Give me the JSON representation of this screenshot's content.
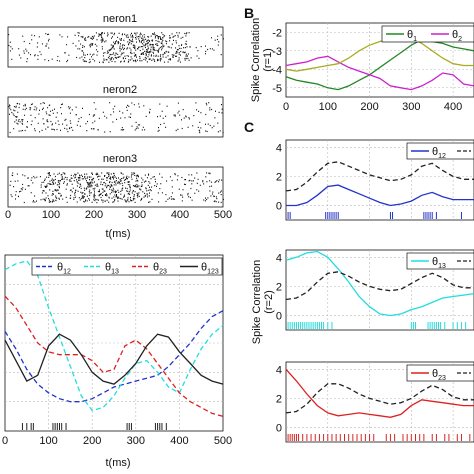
{
  "panel_letters": {
    "b": "B",
    "c": "C"
  },
  "ylabel_b": "Spike Correlation",
  "ylabel_b_sub": "(r=1)",
  "ylabel_c": "Spike Correlation",
  "ylabel_c_sub": "(r=2)",
  "colors": {
    "dot": "#111111",
    "grid": "#b9b9b9",
    "blue": "#2233cc",
    "cyan": "#22dddd",
    "red": "#dd2222",
    "black": "#222222",
    "green": "#228822",
    "magenta": "#cc22cc",
    "olive": "#aaaa22"
  },
  "chart_data": [
    {
      "id": "raster",
      "type": "scatter",
      "title": "",
      "xlabel": "t(ms)",
      "xlim": [
        0,
        500
      ],
      "x_ticks": [
        "0",
        "100",
        "200",
        "300",
        "400",
        "500"
      ],
      "rows": [
        {
          "label": "neron1",
          "density_peak_ms": 300,
          "description_rate": "high in 200-400"
        },
        {
          "label": "neron2",
          "density_peak_ms": 100,
          "description_rate": "higher in 0-150"
        },
        {
          "label": "neron3",
          "density_peak_ms": 200,
          "description_rate": "high in 100-300"
        }
      ]
    },
    {
      "id": "A",
      "type": "line",
      "xlabel": "t(ms)",
      "xlim": [
        0,
        500
      ],
      "ylim": [
        0,
        6
      ],
      "x_ticks": [
        "0",
        "100",
        "200",
        "300",
        "400",
        "500"
      ],
      "legend": [
        "θ12",
        "θ13",
        "θ23",
        "θ123"
      ],
      "x": [
        0,
        25,
        50,
        75,
        100,
        125,
        150,
        175,
        200,
        225,
        250,
        275,
        300,
        325,
        350,
        375,
        400,
        425,
        450,
        475,
        500
      ],
      "series": [
        {
          "name": "θ12",
          "color": "blue",
          "dash": true,
          "values": [
            3.4,
            2.8,
            2.1,
            1.6,
            1.3,
            1.1,
            1.0,
            1.0,
            1.1,
            1.3,
            1.5,
            1.6,
            1.7,
            1.8,
            1.9,
            2.2,
            2.6,
            3.0,
            3.5,
            3.9,
            4.1
          ]
        },
        {
          "name": "θ13",
          "color": "cyan",
          "dash": true,
          "values": [
            5.5,
            5.7,
            5.8,
            5.3,
            4.2,
            3.2,
            2.2,
            1.2,
            0.7,
            0.8,
            1.2,
            1.8,
            2.3,
            2.4,
            2.0,
            1.5,
            1.3,
            2.1,
            2.8,
            3.3,
            3.6
          ]
        },
        {
          "name": "θ23",
          "color": "red",
          "dash": true,
          "values": [
            4.6,
            4.2,
            3.6,
            3.0,
            2.7,
            2.6,
            2.6,
            2.6,
            2.4,
            2.0,
            2.1,
            2.9,
            3.1,
            2.8,
            2.3,
            1.8,
            1.3,
            1.0,
            0.8,
            0.6,
            0.5
          ]
        },
        {
          "name": "θ123",
          "color": "black",
          "dash": false,
          "values": [
            3.1,
            2.4,
            1.7,
            1.9,
            2.9,
            3.3,
            3.1,
            2.6,
            2.0,
            1.7,
            1.6,
            1.9,
            2.3,
            2.9,
            3.3,
            3.2,
            2.7,
            2.3,
            1.9,
            1.7,
            1.6
          ]
        }
      ],
      "spike_events_ms": [
        40,
        50,
        60,
        65,
        110,
        115,
        120,
        125,
        130,
        140,
        280,
        285,
        290,
        345,
        350,
        355,
        360,
        370
      ]
    },
    {
      "id": "B",
      "type": "line",
      "xlim": [
        0,
        450
      ],
      "ylim": [
        -5.5,
        -1.5
      ],
      "x_ticks": [
        "0",
        "100",
        "200",
        "300",
        "400"
      ],
      "y_ticks": [
        "-2",
        "-3",
        "-4",
        "-5"
      ],
      "y_tick_values": [
        -2,
        -3,
        -4,
        -5
      ],
      "legend": [
        "θ1",
        "θ2"
      ],
      "x": [
        0,
        25,
        50,
        75,
        100,
        125,
        150,
        175,
        200,
        225,
        250,
        275,
        300,
        325,
        350,
        375,
        400,
        425,
        450
      ],
      "series": [
        {
          "name": "θ1",
          "color": "green",
          "values": [
            -4.4,
            -4.6,
            -4.7,
            -4.8,
            -5.0,
            -5.1,
            -4.9,
            -4.6,
            -4.3,
            -3.9,
            -3.5,
            -3.1,
            -2.7,
            -2.4,
            -2.5,
            -2.6,
            -2.8,
            -2.9,
            -3.0
          ]
        },
        {
          "name": "θ2",
          "color": "magenta",
          "values": [
            -3.8,
            -3.7,
            -3.6,
            -3.4,
            -3.3,
            -3.6,
            -3.9,
            -4.1,
            -4.3,
            -4.5,
            -4.9,
            -5.0,
            -5.1,
            -4.9,
            -4.6,
            -4.2,
            -4.3,
            -4.8,
            -4.9
          ]
        },
        {
          "name": "",
          "color": "olive",
          "values": [
            -4.0,
            -4.1,
            -4.0,
            -3.9,
            -3.8,
            -3.7,
            -3.4,
            -3.0,
            -2.7,
            -2.5,
            -2.3,
            -2.2,
            -2.3,
            -2.6,
            -3.0,
            -3.4,
            -3.7,
            -3.8,
            -3.8
          ]
        }
      ]
    },
    {
      "id": "C1",
      "type": "line",
      "xlim": [
        0,
        450
      ],
      "ylim": [
        -1,
        4.5
      ],
      "y_ticks": [
        "4",
        "2",
        "0"
      ],
      "y_tick_values": [
        4,
        2,
        0
      ],
      "legend": [
        "θ12"
      ],
      "x": [
        0,
        25,
        50,
        75,
        100,
        125,
        150,
        175,
        200,
        225,
        250,
        275,
        300,
        325,
        350,
        375,
        400,
        425,
        450
      ],
      "series": [
        {
          "name": "θ12",
          "color": "blue",
          "dash": false,
          "values": [
            0.0,
            0.0,
            0.2,
            0.7,
            1.3,
            1.4,
            1.1,
            0.8,
            0.5,
            0.2,
            0.0,
            0.1,
            0.3,
            0.7,
            0.9,
            0.6,
            0.4,
            0.4,
            0.4
          ]
        },
        {
          "name": "",
          "color": "black",
          "dash": true,
          "values": [
            1.0,
            1.1,
            1.6,
            2.3,
            2.9,
            3.0,
            2.7,
            2.4,
            2.1,
            1.9,
            1.7,
            1.8,
            2.1,
            2.7,
            2.9,
            2.4,
            2.0,
            1.8,
            1.8
          ]
        }
      ],
      "spike_events_ms": [
        5,
        10,
        95,
        100,
        105,
        110,
        115,
        120,
        125,
        250,
        255,
        330,
        335,
        340,
        345,
        350,
        360,
        420
      ]
    },
    {
      "id": "C2",
      "type": "line",
      "xlim": [
        0,
        450
      ],
      "ylim": [
        -1,
        4.5
      ],
      "y_ticks": [
        "4",
        "2",
        "0"
      ],
      "y_tick_values": [
        4,
        2,
        0
      ],
      "legend": [
        "θ13"
      ],
      "x": [
        0,
        25,
        50,
        75,
        100,
        125,
        150,
        175,
        200,
        225,
        250,
        275,
        300,
        325,
        350,
        375,
        400,
        425,
        450
      ],
      "series": [
        {
          "name": "θ13",
          "color": "cyan",
          "dash": false,
          "values": [
            3.8,
            4.0,
            4.3,
            4.4,
            4.0,
            3.2,
            2.3,
            1.3,
            0.6,
            0.1,
            0.0,
            0.1,
            0.4,
            0.6,
            0.9,
            1.2,
            1.3,
            1.4,
            1.5
          ]
        },
        {
          "name": "",
          "color": "black",
          "dash": true,
          "values": [
            1.1,
            1.2,
            1.6,
            2.3,
            2.9,
            3.0,
            2.7,
            2.3,
            2.0,
            1.8,
            1.7,
            1.8,
            2.2,
            2.6,
            2.9,
            2.6,
            2.1,
            1.9,
            1.9
          ]
        }
      ],
      "spike_events_ms": [
        5,
        10,
        15,
        20,
        25,
        30,
        35,
        40,
        45,
        50,
        55,
        60,
        65,
        70,
        75,
        80,
        85,
        90,
        100,
        110,
        300,
        305,
        310,
        340,
        345,
        350,
        355,
        360,
        365,
        370,
        380,
        400,
        410,
        420,
        430
      ]
    },
    {
      "id": "C3",
      "type": "line",
      "xlim": [
        0,
        450
      ],
      "ylim": [
        -1,
        4.5
      ],
      "y_ticks": [
        "4",
        "2",
        "0"
      ],
      "y_tick_values": [
        4,
        2,
        0
      ],
      "legend": [
        "θ23"
      ],
      "x": [
        0,
        25,
        50,
        75,
        100,
        125,
        150,
        175,
        200,
        225,
        250,
        275,
        300,
        325,
        350,
        375,
        400,
        425,
        450
      ],
      "series": [
        {
          "name": "θ23",
          "color": "red",
          "dash": false,
          "values": [
            4.0,
            3.2,
            2.3,
            1.5,
            1.0,
            0.8,
            0.9,
            1.0,
            0.9,
            0.8,
            0.7,
            0.9,
            1.5,
            1.9,
            1.8,
            1.7,
            1.6,
            1.5,
            1.5
          ]
        },
        {
          "name": "",
          "color": "black",
          "dash": true,
          "values": [
            1.0,
            1.1,
            1.6,
            2.4,
            3.0,
            3.0,
            2.7,
            2.3,
            2.0,
            1.8,
            1.6,
            1.7,
            2.0,
            2.5,
            2.9,
            2.6,
            2.1,
            1.9,
            1.9
          ]
        }
      ],
      "spike_events_ms": [
        5,
        10,
        15,
        20,
        25,
        30,
        40,
        50,
        60,
        70,
        80,
        90,
        100,
        110,
        120,
        130,
        140,
        150,
        160,
        170,
        180,
        190,
        200,
        210,
        240,
        250,
        260,
        280,
        290,
        300,
        310,
        320,
        330,
        350,
        360,
        380,
        390,
        410,
        420,
        440
      ]
    }
  ]
}
